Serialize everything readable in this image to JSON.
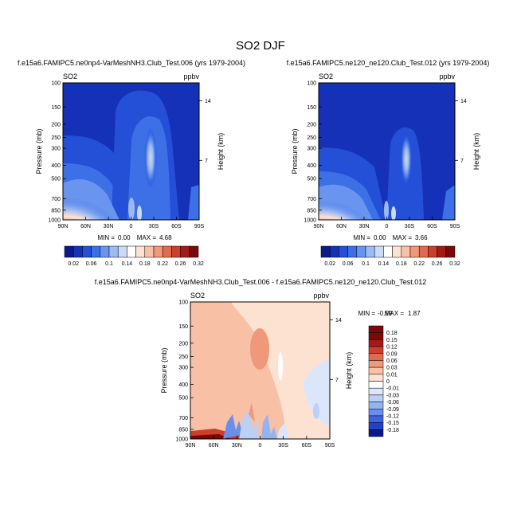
{
  "page_title": "SO2 DJF",
  "chart_data": [
    {
      "type": "heatmap",
      "title": "f.e15a6.FAMIPC5.ne0np4-VarMeshNH3.Club_Test.006 (yrs 1979-2004)",
      "variable": "SO2",
      "units": "ppbv",
      "xlabel": "",
      "ylabel": "Pressure (mb)",
      "y2label": "Height (km)",
      "x_ticks": [
        "90N",
        "60N",
        "30N",
        "0",
        "30S",
        "60S",
        "90S"
      ],
      "y_ticks": [
        100,
        150,
        200,
        250,
        300,
        400,
        500,
        700,
        850,
        1000
      ],
      "y2_ticks": [
        14,
        7
      ],
      "ylim": [
        1000,
        100
      ],
      "log_scale_y": true,
      "min_label": "MIN =",
      "min_value": "0.00",
      "max_label": "MAX =",
      "max_value": "4.68",
      "colorbar_labels": [
        "0.02",
        "0.06",
        "0.1",
        "0.14",
        "0.18",
        "0.22",
        "0.26",
        "0.32"
      ]
    },
    {
      "type": "heatmap",
      "title": "f.e15a6.FAMIPC5.ne120_ne120.Club_Test.012 (yrs 1979-2004)",
      "variable": "SO2",
      "units": "ppbv",
      "xlabel": "",
      "ylabel": "Pressure (mb)",
      "y2label": "Height (km)",
      "x_ticks": [
        "90N",
        "60N",
        "30N",
        "0",
        "30S",
        "60S",
        "90S"
      ],
      "y_ticks": [
        100,
        150,
        200,
        250,
        300,
        400,
        500,
        700,
        850,
        1000
      ],
      "y2_ticks": [
        14,
        7
      ],
      "ylim": [
        1000,
        100
      ],
      "log_scale_y": true,
      "min_label": "MIN =",
      "min_value": "0.00",
      "max_label": "MAX =",
      "max_value": "3.66",
      "colorbar_labels": [
        "0.02",
        "0.06",
        "0.1",
        "0.14",
        "0.18",
        "0.22",
        "0.26",
        "0.32"
      ]
    },
    {
      "type": "heatmap",
      "title": "f.e15a6.FAMIPC5.ne0np4-VarMeshNH3.Club_Test.006 - f.e15a6.FAMIPC5.ne120_ne120.Club_Test.012",
      "variable": "SO2",
      "units": "ppbv",
      "xlabel": "",
      "ylabel": "Pressure (mb)",
      "y2label": "Height (km)",
      "x_ticks": [
        "90N",
        "60N",
        "30N",
        "0",
        "30S",
        "60S",
        "90S"
      ],
      "y_ticks": [
        100,
        150,
        200,
        250,
        300,
        400,
        500,
        700,
        850,
        1000
      ],
      "y2_ticks": [
        14,
        7
      ],
      "ylim": [
        1000,
        100
      ],
      "log_scale_y": true,
      "min_label": "MIN =",
      "min_value": "-0.59",
      "max_label": "MAX =",
      "max_value": "1.87",
      "colorbar_labels": [
        "0.18",
        "0.15",
        "0.12",
        "0.09",
        "0.06",
        "0.03",
        "0.01",
        "0",
        "-0.01",
        "-0.03",
        "-0.06",
        "-0.09",
        "-0.12",
        "-0.15",
        "-0.18"
      ]
    }
  ],
  "colors": {
    "seq_palette": [
      "#0b1a8a",
      "#1531b8",
      "#2350d6",
      "#3d6fe6",
      "#6a95ef",
      "#9cbaf4",
      "#cbdaf8",
      "#ffffff",
      "#fde2d2",
      "#f8c1a6",
      "#f0987a",
      "#e26a4f",
      "#cc3f2d",
      "#a51a16",
      "#7a0a0a"
    ],
    "diff_palette": [
      "#7a0a0a",
      "#a51a16",
      "#cc3f2d",
      "#e26a4f",
      "#f0987a",
      "#f8c1a6",
      "#fde2d2",
      "#ffffff",
      "#dbe6fb",
      "#bcd0f6",
      "#93b3f1",
      "#6a8fea",
      "#3f63df",
      "#2440c4",
      "#0b1a8a"
    ]
  }
}
